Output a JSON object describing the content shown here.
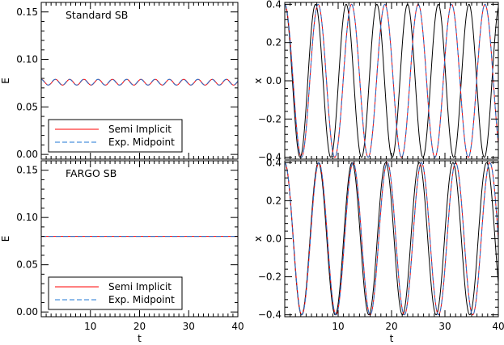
{
  "chart_data": [
    {
      "type": "line",
      "annotation": "Standard SB",
      "xlabel": "",
      "ylabel": "E",
      "xlim": [
        0,
        40
      ],
      "ylim": [
        -0.005,
        0.16
      ],
      "xticks": [
        10,
        20,
        30,
        40
      ],
      "yticks": [
        "0.00",
        "0.05",
        "0.10",
        "0.15"
      ],
      "legend_position": "bottom-left",
      "series": [
        {
          "name": "Semi Implicit",
          "color": "#ff0000",
          "dash": "solid",
          "kind": "energy_osc",
          "mean": 0.076,
          "amplitude": 0.003,
          "period": 2.9,
          "phase": 0.0
        },
        {
          "name": "Exp. Midpoint",
          "color": "#1f77d4",
          "dash": "dashed",
          "kind": "energy_osc",
          "mean": 0.076,
          "amplitude": 0.003,
          "period": 2.9,
          "phase": 0.15
        }
      ]
    },
    {
      "type": "line",
      "annotation": "",
      "xlabel": "",
      "ylabel": "x",
      "xlim": [
        0,
        40
      ],
      "ylim": [
        -0.41,
        0.41
      ],
      "xticks": [
        10,
        20,
        30,
        40
      ],
      "yticks": [
        "−0.4",
        "−0.2",
        "0.0",
        "0.2",
        "0.4"
      ],
      "series": [
        {
          "name": "",
          "color": "#000000",
          "dash": "solid",
          "kind": "cos",
          "amplitude": 0.4,
          "period": 5.75
        },
        {
          "name": "",
          "color": "#ff0000",
          "dash": "solid",
          "kind": "cos",
          "amplitude": 0.4,
          "period": 6.25
        },
        {
          "name": "",
          "color": "#1f77d4",
          "dash": "dashed",
          "kind": "cos",
          "amplitude": 0.4,
          "period": 6.25
        }
      ]
    },
    {
      "type": "line",
      "annotation": "FARGO SB",
      "xlabel": "t",
      "ylabel": "E",
      "xlim": [
        0,
        40
      ],
      "ylim": [
        -0.005,
        0.16
      ],
      "xticks": [
        10,
        20,
        30,
        40
      ],
      "yticks": [
        "0.00",
        "0.05",
        "0.10",
        "0.15"
      ],
      "legend_position": "bottom-left",
      "series": [
        {
          "name": "Semi Implicit",
          "color": "#ff0000",
          "dash": "solid",
          "kind": "constant",
          "value": 0.08
        },
        {
          "name": "Exp. Midpoint",
          "color": "#1f77d4",
          "dash": "dashed",
          "kind": "constant",
          "value": 0.08
        }
      ]
    },
    {
      "type": "line",
      "annotation": "",
      "xlabel": "t",
      "ylabel": "x",
      "xlim": [
        0,
        40
      ],
      "ylim": [
        -0.41,
        0.41
      ],
      "xticks": [
        10,
        20,
        30,
        40
      ],
      "yticks": [
        "−0.4",
        "−0.2",
        "0.0",
        "0.2",
        "0.4"
      ],
      "series": [
        {
          "name": "",
          "color": "#000000",
          "dash": "solid",
          "kind": "cos",
          "amplitude": 0.4,
          "period": 6.3
        },
        {
          "name": "",
          "color": "#ff0000",
          "dash": "solid",
          "kind": "cos",
          "amplitude": 0.4,
          "period": 6.4
        },
        {
          "name": "",
          "color": "#1f77d4",
          "dash": "dashed",
          "kind": "cos",
          "amplitude": 0.4,
          "period": 6.4
        }
      ]
    }
  ]
}
